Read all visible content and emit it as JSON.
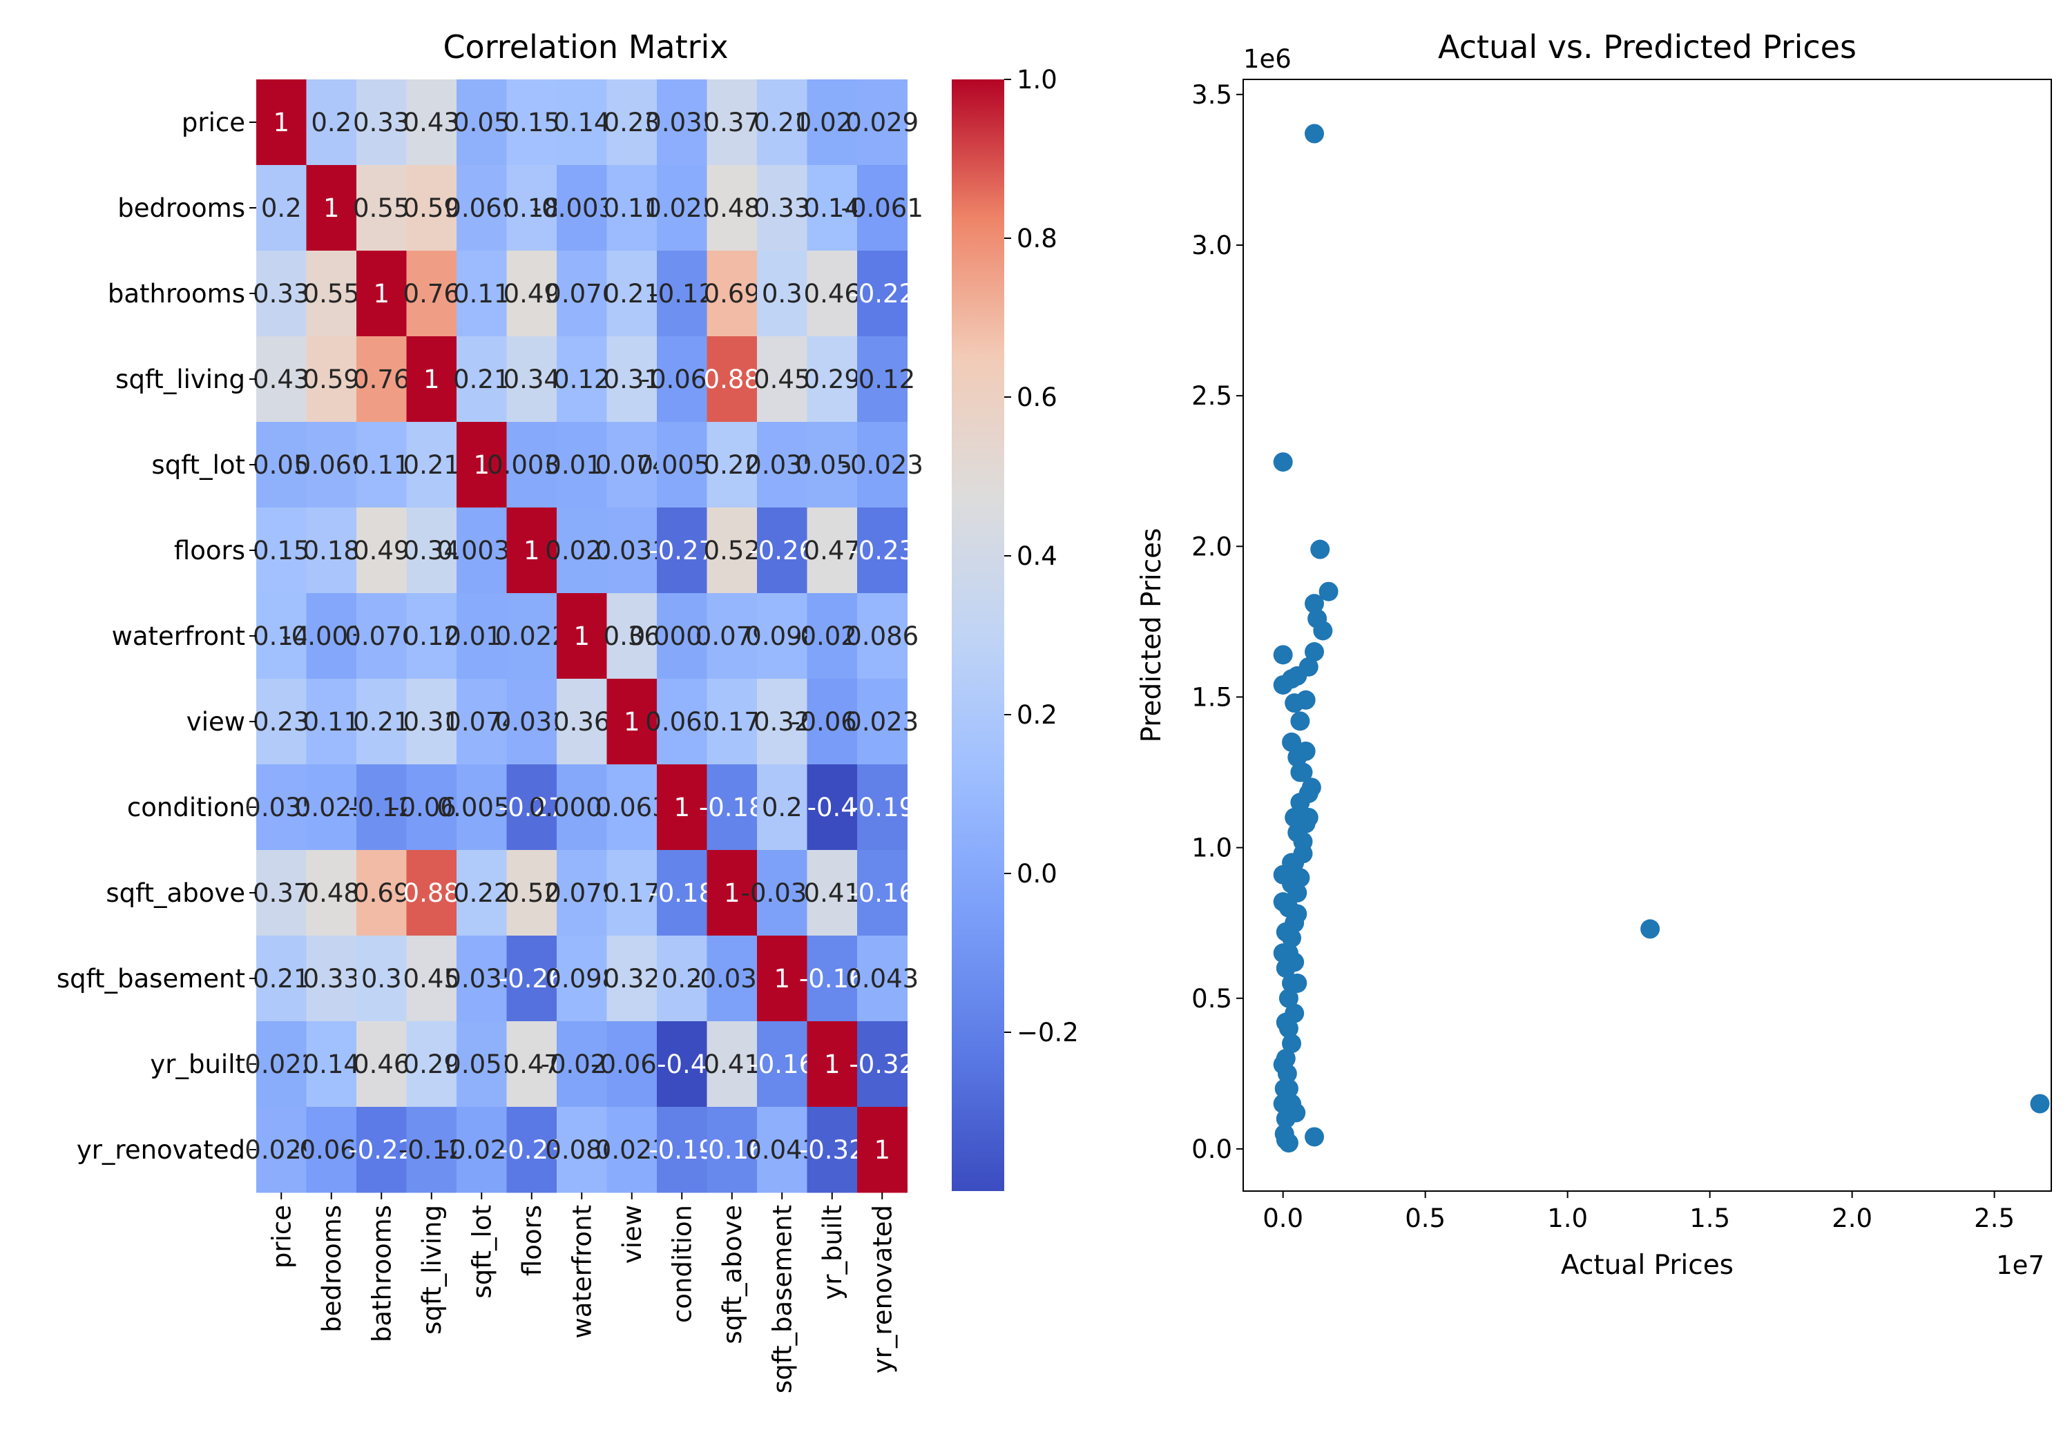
{
  "chart_data": [
    {
      "type": "heatmap",
      "title": "Correlation Matrix",
      "labels": [
        "price",
        "bedrooms",
        "bathrooms",
        "sqft_living",
        "sqft_lot",
        "floors",
        "waterfront",
        "view",
        "condition",
        "sqft_above",
        "sqft_basement",
        "yr_built",
        "yr_renovated"
      ],
      "values": [
        [
          1,
          0.2,
          0.33,
          0.43,
          0.05,
          0.15,
          0.14,
          0.23,
          0.035,
          0.37,
          0.21,
          0.022,
          0.029
        ],
        [
          0.2,
          1,
          0.55,
          0.59,
          0.069,
          0.18,
          -0.0035,
          0.11,
          0.025,
          0.48,
          0.33,
          0.14,
          -0.061
        ],
        [
          0.33,
          0.55,
          1,
          0.76,
          0.11,
          0.49,
          0.076,
          0.21,
          -0.12,
          0.69,
          0.3,
          0.46,
          -0.22
        ],
        [
          0.43,
          0.59,
          0.76,
          1,
          0.21,
          0.34,
          0.12,
          0.31,
          -0.063,
          0.88,
          0.45,
          0.29,
          -0.12
        ],
        [
          0.05,
          0.069,
          0.11,
          0.21,
          1,
          0.0037,
          0.017,
          0.074,
          0.0056,
          0.22,
          0.035,
          0.051,
          -0.023
        ],
        [
          0.15,
          0.18,
          0.49,
          0.34,
          0.0037,
          1,
          0.022,
          0.031,
          -0.27,
          0.52,
          -0.26,
          0.47,
          -0.23
        ],
        [
          0.14,
          -0.0035,
          0.076,
          0.12,
          0.017,
          0.022,
          1,
          0.36,
          0.00035,
          0.079,
          0.098,
          -0.024,
          0.086
        ],
        [
          0.23,
          0.11,
          0.21,
          0.31,
          0.074,
          0.031,
          0.36,
          1,
          0.063,
          0.17,
          0.32,
          -0.064,
          0.023
        ],
        [
          0.035,
          0.025,
          -0.12,
          -0.063,
          0.0056,
          -0.27,
          0.00035,
          0.063,
          1,
          -0.18,
          0.2,
          -0.4,
          -0.19
        ],
        [
          0.37,
          0.48,
          0.69,
          0.88,
          0.22,
          0.52,
          0.079,
          0.17,
          -0.18,
          1,
          -0.039,
          0.41,
          -0.16
        ],
        [
          0.21,
          0.33,
          0.3,
          0.45,
          0.035,
          -0.26,
          0.098,
          0.32,
          0.2,
          -0.039,
          1,
          -0.16,
          0.043
        ],
        [
          0.022,
          0.14,
          0.46,
          0.29,
          0.051,
          0.47,
          -0.024,
          -0.064,
          -0.4,
          0.41,
          -0.16,
          1,
          -0.32
        ],
        [
          0.029,
          -0.061,
          -0.22,
          -0.12,
          -0.023,
          -0.23,
          0.086,
          0.023,
          -0.19,
          -0.16,
          0.043,
          -0.32,
          1
        ]
      ],
      "colormap": "coolwarm",
      "vmin": -0.4,
      "vmax": 1.0,
      "colorbar_ticks": [
        "1.0",
        "0.8",
        "0.6",
        "0.4",
        "0.2",
        "0.0",
        "−0.2"
      ]
    },
    {
      "type": "scatter",
      "title": "Actual vs. Predicted Prices",
      "xlabel": "Actual Prices",
      "ylabel": "Predicted Prices",
      "x_offset_label": "1e7",
      "y_offset_label": "1e6",
      "xlim": [
        -0.14,
        2.7
      ],
      "ylim": [
        -0.14,
        3.55
      ],
      "xticks": [
        "0.0",
        "0.5",
        "1.0",
        "1.5",
        "2.0",
        "2.5"
      ],
      "yticks": [
        "0.0",
        "0.5",
        "1.0",
        "1.5",
        "2.0",
        "2.5",
        "3.0",
        "3.5"
      ],
      "color": "#1f77b4",
      "x_units": "1e7",
      "y_units": "1e6",
      "points": [
        [
          0.11,
          3.37
        ],
        [
          0.0,
          2.28
        ],
        [
          0.13,
          1.99
        ],
        [
          0.16,
          1.85
        ],
        [
          0.11,
          1.81
        ],
        [
          0.12,
          1.76
        ],
        [
          0.14,
          1.72
        ],
        [
          0.11,
          1.65
        ],
        [
          0.09,
          1.6
        ],
        [
          0.0,
          1.64
        ],
        [
          0.08,
          1.49
        ],
        [
          0.0,
          1.54
        ],
        [
          0.05,
          1.57
        ],
        [
          0.03,
          1.56
        ],
        [
          0.04,
          1.48
        ],
        [
          0.03,
          1.35
        ],
        [
          0.05,
          1.3
        ],
        [
          0.06,
          1.25
        ],
        [
          0.06,
          1.15
        ],
        [
          0.05,
          1.05
        ],
        [
          0.04,
          0.95
        ],
        [
          0.03,
          0.88
        ],
        [
          0.02,
          0.8
        ],
        [
          0.04,
          0.75
        ],
        [
          0.02,
          0.65
        ],
        [
          0.0,
          0.91
        ],
        [
          0.0,
          0.82
        ],
        [
          0.01,
          0.6
        ],
        [
          0.02,
          0.5
        ],
        [
          0.01,
          0.42
        ],
        [
          0.0,
          0.65
        ],
        [
          0.01,
          0.3
        ],
        [
          0.02,
          0.2
        ],
        [
          0.0,
          0.28
        ],
        [
          0.01,
          0.1
        ],
        [
          0.005,
          0.05
        ],
        [
          0.03,
          0.15
        ],
        [
          0.0,
          0.15
        ],
        [
          0.005,
          0.2
        ],
        [
          0.015,
          0.25
        ],
        [
          0.03,
          0.35
        ],
        [
          0.04,
          0.45
        ],
        [
          0.05,
          0.55
        ],
        [
          0.03,
          0.7
        ],
        [
          0.05,
          0.85
        ],
        [
          0.07,
          0.98
        ],
        [
          0.09,
          1.1
        ],
        [
          0.1,
          1.2
        ],
        [
          0.08,
          1.32
        ],
        [
          0.07,
          1.02
        ],
        [
          0.02,
          0.4
        ],
        [
          0.03,
          0.55
        ],
        [
          0.04,
          0.62
        ],
        [
          0.05,
          0.78
        ],
        [
          0.06,
          0.9
        ],
        [
          0.08,
          1.08
        ],
        [
          0.09,
          1.18
        ],
        [
          0.07,
          1.25
        ],
        [
          0.06,
          1.42
        ],
        [
          0.04,
          1.1
        ],
        [
          0.03,
          0.95
        ],
        [
          0.01,
          0.72
        ],
        [
          0.045,
          0.12
        ],
        [
          0.02,
          0.02
        ],
        [
          0.01,
          0.03
        ],
        [
          0.11,
          0.04
        ],
        [
          1.29,
          0.73
        ],
        [
          2.66,
          0.15
        ]
      ]
    }
  ]
}
